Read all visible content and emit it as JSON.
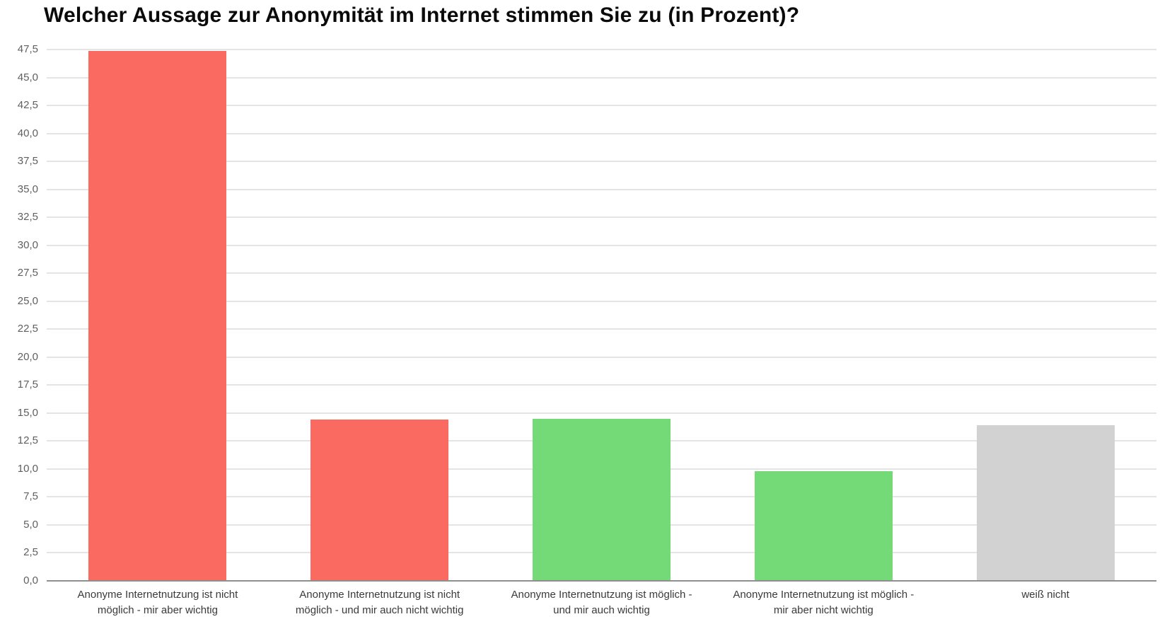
{
  "title": "Welcher Aussage zur Anonymität im Internet stimmen Sie zu (in Prozent)?",
  "colors": {
    "bar_red": "#fb6a61",
    "bar_green": "#74da77",
    "bar_gray": "#d2d2d2",
    "gridline": "#e4e4e4",
    "axis_line": "#8f8f8f",
    "tick_label": "#5f5f5f",
    "category_label": "#3a3a3a",
    "title": "#0a0a0a",
    "background": "#ffffff"
  },
  "chart_data": {
    "type": "bar",
    "title": "Welcher Aussage zur Anonymität im Internet stimmen Sie zu (in Prozent)?",
    "xlabel": "",
    "ylabel": "",
    "ylim": [
      0,
      47.5
    ],
    "ytick_step": 2.5,
    "ytick_labels": [
      "0,0",
      "2,5",
      "5,0",
      "7,5",
      "10,0",
      "12,5",
      "15,0",
      "17,5",
      "20,0",
      "22,5",
      "25,0",
      "27,5",
      "30,0",
      "32,5",
      "35,0",
      "37,5",
      "40,0",
      "42,5",
      "45,0",
      "47,5"
    ],
    "grid": true,
    "legend_position": "none",
    "number_format": "decimal-comma",
    "categories": [
      "Anonyme Internetnutzung ist nicht möglich - mir aber wichtig",
      "Anonyme Internetnutzung ist nicht möglich - und mir auch nicht wichtig",
      "Anonyme Internetnutzung ist möglich - und mir auch wichtig",
      "Anonyme Internetnutzung ist möglich - mir aber nicht wichtig",
      "weiß nicht"
    ],
    "category_lines": [
      [
        "Anonyme Internetnutzung ist nicht",
        "möglich - mir aber wichtig"
      ],
      [
        "Anonyme Internetnutzung ist nicht",
        "möglich - und mir auch nicht wichtig"
      ],
      [
        "Anonyme Internetnutzung ist möglich -",
        "und mir auch wichtig"
      ],
      [
        "Anonyme Internetnutzung ist möglich -",
        "mir aber nicht wichtig"
      ],
      [
        "weiß nicht"
      ]
    ],
    "values": [
      47.4,
      14.4,
      14.5,
      9.8,
      13.9
    ],
    "bar_colors": [
      "#fb6a61",
      "#fb6a61",
      "#74da77",
      "#74da77",
      "#d2d2d2"
    ]
  }
}
